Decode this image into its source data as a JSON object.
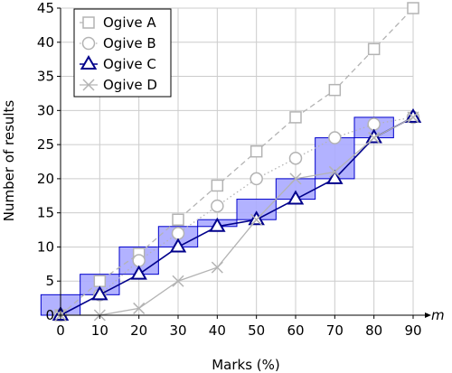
{
  "chart_data": {
    "type": "line",
    "xlabel": "Marks (%)",
    "ylabel": "Number of results",
    "x_axis_end_label": "m",
    "xlim": [
      0,
      90
    ],
    "ylim": [
      0,
      45
    ],
    "xticks": [
      0,
      10,
      20,
      30,
      40,
      50,
      60,
      70,
      80,
      90
    ],
    "yticks": [
      0,
      5,
      10,
      15,
      20,
      25,
      30,
      35,
      40,
      45
    ],
    "grid": true,
    "legend_position": "top-left",
    "series": [
      {
        "name": "Ogive A",
        "marker": "square",
        "style": "dashed",
        "color": "#b3b3b3",
        "x": [
          0,
          10,
          20,
          30,
          40,
          50,
          60,
          70,
          80,
          90
        ],
        "y": [
          0,
          5,
          9,
          14,
          19,
          24,
          29,
          33,
          39,
          45
        ]
      },
      {
        "name": "Ogive B",
        "marker": "circle",
        "style": "dotted",
        "color": "#b3b3b3",
        "x": [
          0,
          10,
          20,
          30,
          40,
          50,
          60,
          70,
          80,
          90
        ],
        "y": [
          0,
          3,
          8,
          12,
          16,
          20,
          23,
          26,
          28,
          29
        ]
      },
      {
        "name": "Ogive C",
        "marker": "triangle",
        "style": "solid",
        "color": "#00008b",
        "x": [
          0,
          10,
          20,
          30,
          40,
          50,
          60,
          70,
          80,
          90
        ],
        "y": [
          0,
          3,
          6,
          10,
          13,
          14,
          17,
          20,
          26,
          29
        ]
      },
      {
        "name": "Ogive D",
        "marker": "x",
        "style": "solid",
        "color": "#b3b3b3",
        "x": [
          0,
          10,
          20,
          30,
          40,
          50,
          60,
          70,
          80,
          90
        ],
        "y": [
          0,
          0,
          1,
          5,
          7,
          14,
          20,
          21,
          26,
          29
        ]
      }
    ],
    "boxes": [
      {
        "x0": -5,
        "x1": 5,
        "y0": 0,
        "y1": 3
      },
      {
        "x0": 5,
        "x1": 15,
        "y0": 3,
        "y1": 6
      },
      {
        "x0": 15,
        "x1": 25,
        "y0": 6,
        "y1": 10
      },
      {
        "x0": 25,
        "x1": 35,
        "y0": 10,
        "y1": 13
      },
      {
        "x0": 35,
        "x1": 45,
        "y0": 13,
        "y1": 14
      },
      {
        "x0": 45,
        "x1": 55,
        "y0": 14,
        "y1": 17
      },
      {
        "x0": 55,
        "x1": 65,
        "y0": 17,
        "y1": 20
      },
      {
        "x0": 65,
        "x1": 75,
        "y0": 20,
        "y1": 26
      },
      {
        "x0": 75,
        "x1": 85,
        "y0": 26,
        "y1": 29
      }
    ],
    "box_fill": "#aaaaff",
    "box_stroke": "#0000cc"
  }
}
